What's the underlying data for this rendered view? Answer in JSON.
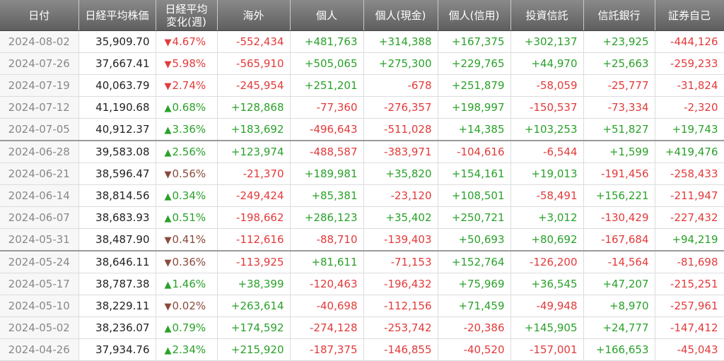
{
  "headers": [
    "日付",
    "日経平均株価",
    "日経平均\n変化(週)",
    "海外",
    "個人",
    "個人(現金)",
    "個人(信用)",
    "投資信託",
    "信託銀行",
    "証券自己"
  ],
  "rows": [
    {
      "date": "2024-08-02",
      "nikkei": "35,909.70",
      "chg": "4.67%",
      "dir": "down",
      "strong": true,
      "v": [
        "-552,434",
        "+481,763",
        "+314,388",
        "+167,375",
        "+302,137",
        "+23,925",
        "-444,126"
      ]
    },
    {
      "date": "2024-07-26",
      "nikkei": "37,667.41",
      "chg": "5.98%",
      "dir": "down",
      "strong": true,
      "v": [
        "-565,910",
        "+505,065",
        "+275,300",
        "+229,765",
        "+44,970",
        "+25,663",
        "-259,233"
      ]
    },
    {
      "date": "2024-07-19",
      "nikkei": "40,063.79",
      "chg": "2.74%",
      "dir": "down",
      "strong": true,
      "v": [
        "-245,954",
        "+251,201",
        "-678",
        "+251,879",
        "-58,059",
        "-25,777",
        "-31,824"
      ]
    },
    {
      "date": "2024-07-12",
      "nikkei": "41,190.68",
      "chg": "0.68%",
      "dir": "up",
      "strong": false,
      "v": [
        "+128,868",
        "-77,360",
        "-276,357",
        "+198,997",
        "-150,537",
        "-73,334",
        "-2,320"
      ]
    },
    {
      "date": "2024-07-05",
      "nikkei": "40,912.37",
      "chg": "3.36%",
      "dir": "up",
      "strong": true,
      "v": [
        "+183,692",
        "-496,643",
        "-511,028",
        "+14,385",
        "+103,253",
        "+51,827",
        "+19,743"
      ]
    },
    {
      "date": "2024-06-28",
      "nikkei": "39,583.08",
      "chg": "2.56%",
      "dir": "up",
      "strong": true,
      "sep": true,
      "v": [
        "+123,974",
        "-488,587",
        "-383,971",
        "-104,616",
        "-6,544",
        "+1,599",
        "+419,476"
      ]
    },
    {
      "date": "2024-06-21",
      "nikkei": "38,596.47",
      "chg": "0.56%",
      "dir": "down",
      "strong": false,
      "v": [
        "-21,370",
        "+189,981",
        "+35,820",
        "+154,161",
        "+19,013",
        "-191,456",
        "-258,433"
      ]
    },
    {
      "date": "2024-06-14",
      "nikkei": "38,814.56",
      "chg": "0.34%",
      "dir": "up",
      "strong": false,
      "v": [
        "-249,424",
        "+85,381",
        "-23,120",
        "+108,501",
        "-58,491",
        "+156,221",
        "-211,947"
      ]
    },
    {
      "date": "2024-06-07",
      "nikkei": "38,683.93",
      "chg": "0.51%",
      "dir": "up",
      "strong": false,
      "v": [
        "-198,662",
        "+286,123",
        "+35,402",
        "+250,721",
        "+3,012",
        "-130,429",
        "-227,432"
      ]
    },
    {
      "date": "2024-05-31",
      "nikkei": "38,487.90",
      "chg": "0.41%",
      "dir": "down",
      "strong": false,
      "v": [
        "-112,616",
        "-88,710",
        "-139,403",
        "+50,693",
        "+80,692",
        "-167,684",
        "+94,219"
      ]
    },
    {
      "date": "2024-05-24",
      "nikkei": "38,646.11",
      "chg": "0.36%",
      "dir": "down",
      "strong": false,
      "sep": true,
      "v": [
        "-113,925",
        "+81,611",
        "-71,153",
        "+152,764",
        "-126,200",
        "-14,564",
        "-81,698"
      ]
    },
    {
      "date": "2024-05-17",
      "nikkei": "38,787.38",
      "chg": "1.46%",
      "dir": "up",
      "strong": true,
      "v": [
        "+38,399",
        "-120,463",
        "-196,432",
        "+75,969",
        "+36,545",
        "+47,207",
        "-215,251"
      ]
    },
    {
      "date": "2024-05-10",
      "nikkei": "38,229.11",
      "chg": "0.02%",
      "dir": "down",
      "strong": false,
      "v": [
        "+263,614",
        "-40,698",
        "-112,156",
        "+71,459",
        "-49,948",
        "+8,970",
        "-257,961"
      ]
    },
    {
      "date": "2024-05-02",
      "nikkei": "38,236.07",
      "chg": "0.79%",
      "dir": "up",
      "strong": false,
      "v": [
        "+174,592",
        "-274,128",
        "-253,742",
        "-20,386",
        "+145,905",
        "+24,777",
        "-147,412"
      ]
    },
    {
      "date": "2024-04-26",
      "nikkei": "37,934.76",
      "chg": "2.34%",
      "dir": "up",
      "strong": true,
      "v": [
        "+215,920",
        "-187,375",
        "-146,855",
        "-40,520",
        "-157,001",
        "+166,653",
        "-45,043"
      ]
    }
  ],
  "colors": {
    "positive": "#2aa12a",
    "negative": "#e33a3a",
    "down_soft": "#8b4a3c",
    "header_bg": "#6e6e6e"
  }
}
